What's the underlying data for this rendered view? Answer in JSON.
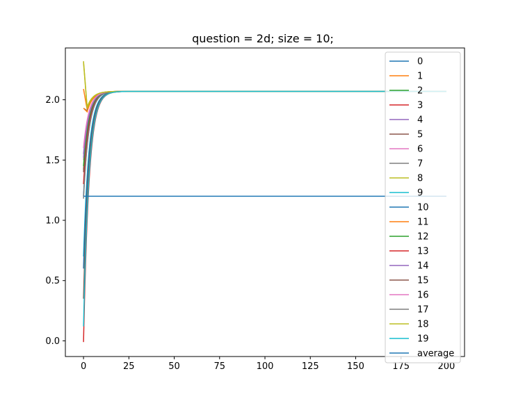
{
  "chart_data": {
    "type": "line",
    "title": "question = 2d; size = 10;",
    "xlabel": "",
    "ylabel": "",
    "xlim": [
      -10,
      210
    ],
    "ylim": [
      -0.13,
      2.43
    ],
    "xticks": [
      0,
      25,
      50,
      75,
      100,
      125,
      150,
      175,
      200
    ],
    "xtick_labels": [
      "0",
      "25",
      "50",
      "75",
      "100",
      "125",
      "150",
      "175",
      "200"
    ],
    "yticks": [
      0.0,
      0.5,
      1.0,
      1.5,
      2.0
    ],
    "ytick_labels": [
      "0.0",
      "0.5",
      "1.0",
      "1.5",
      "2.0"
    ],
    "grid": false,
    "legend_position": "right (upper)",
    "x_max": 200,
    "converged_value": 2.07,
    "series": [
      {
        "name": "0",
        "color": "#1f77b4",
        "start": 1.2,
        "min": 1.2
      },
      {
        "name": "1",
        "color": "#ff7f0e",
        "start": 2.09,
        "min": 1.92
      },
      {
        "name": "2",
        "color": "#2ca02c",
        "start": 1.42,
        "min": 1.42
      },
      {
        "name": "3",
        "color": "#d62728",
        "start": 1.3,
        "min": 1.3
      },
      {
        "name": "4",
        "color": "#9467bd",
        "start": 1.55,
        "min": 1.55
      },
      {
        "name": "5",
        "color": "#8c564b",
        "start": 1.4,
        "min": 1.4
      },
      {
        "name": "6",
        "color": "#e377c2",
        "start": 1.5,
        "min": 1.5
      },
      {
        "name": "7",
        "color": "#7f7f7f",
        "start": 1.93,
        "min": 1.91
      },
      {
        "name": "8",
        "color": "#bcbd22",
        "start": 2.32,
        "min": 1.94
      },
      {
        "name": "9",
        "color": "#17becf",
        "start": 0.7,
        "min": 0.7
      },
      {
        "name": "10",
        "color": "#1f77b4",
        "start": 0.6,
        "min": 0.6
      },
      {
        "name": "11",
        "color": "#ff7f0e",
        "start": 1.93,
        "min": 1.9
      },
      {
        "name": "12",
        "color": "#2ca02c",
        "start": 1.45,
        "min": 1.45
      },
      {
        "name": "13",
        "color": "#d62728",
        "start": -0.01,
        "min": -0.01
      },
      {
        "name": "14",
        "color": "#9467bd",
        "start": 1.52,
        "min": 1.52
      },
      {
        "name": "15",
        "color": "#8c564b",
        "start": 0.35,
        "min": 0.35
      },
      {
        "name": "16",
        "color": "#e377c2",
        "start": 1.6,
        "min": 1.6
      },
      {
        "name": "17",
        "color": "#7f7f7f",
        "start": 1.18,
        "min": 1.18
      },
      {
        "name": "18",
        "color": "#bcbd22",
        "start": 2.31,
        "min": 1.93
      },
      {
        "name": "19",
        "color": "#17becf",
        "start": 0.12,
        "min": 0.12
      },
      {
        "name": "average",
        "color": "#1f77b4",
        "constant": 1.2
      }
    ]
  }
}
